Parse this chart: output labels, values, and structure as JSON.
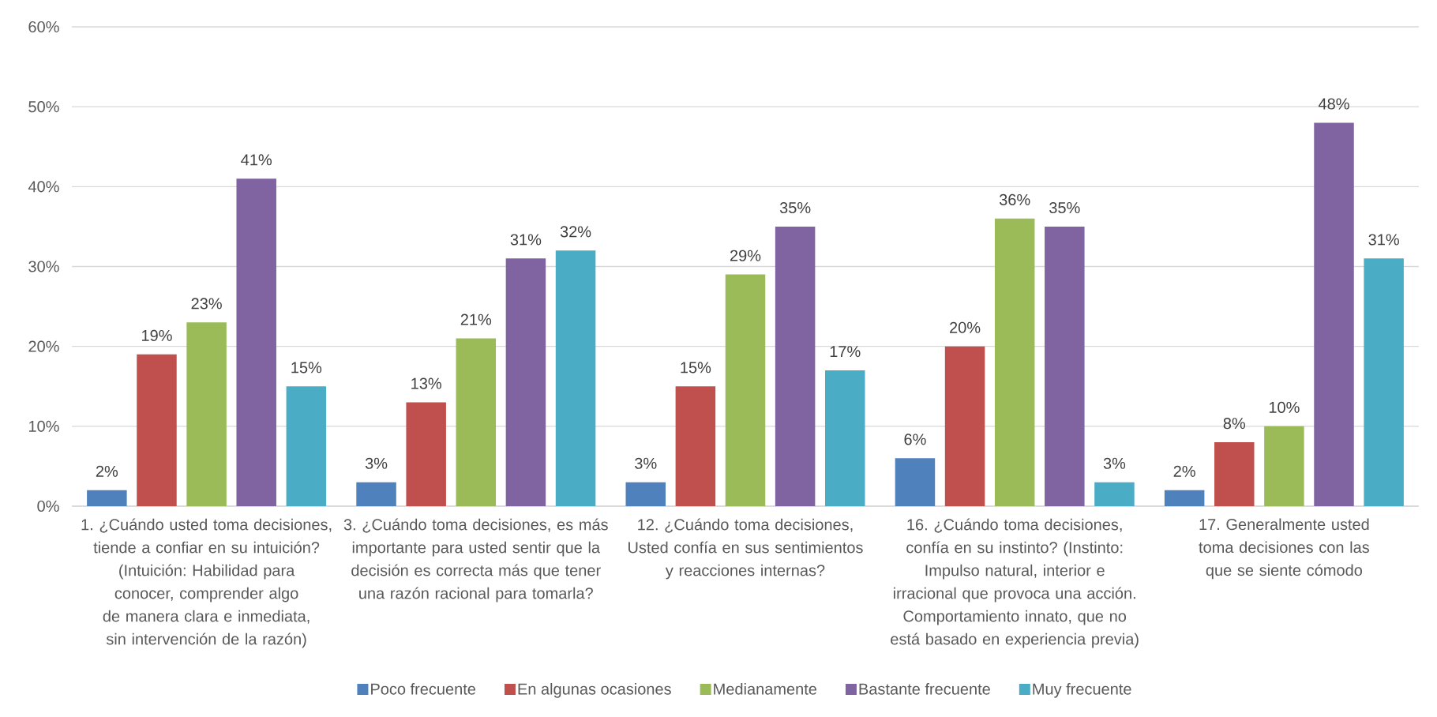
{
  "chart_data": {
    "type": "bar",
    "categories": [
      "1. ¿Cuándo usted toma decisiones, tiende a confiar en su intuición? (Intuición: Habilidad para conocer, comprender algo de manera clara e inmediata, sin intervención de la razón)",
      "3. ¿Cuándo toma decisiones, es más importante para usted sentir que la decisión es correcta más que tener una razón racional para tomarla?",
      "12. ¿Cuándo toma decisiones, Usted confía en sus sentimientos y reacciones internas?",
      "16. ¿Cuándo toma decisiones, confía en su instinto? (Instinto: Impulso natural, interior e irracional que provoca una acción. Comportamiento innato, que no está basado en experiencia previa)",
      "17. Generalmente usted toma decisiones con las que se siente cómodo"
    ],
    "series": [
      {
        "name": "Poco frecuente",
        "color": "#4f81bd",
        "values": [
          2,
          3,
          3,
          6,
          2
        ],
        "value_labels": [
          "2%",
          "3%",
          "3%",
          "6%",
          "2%"
        ]
      },
      {
        "name": "En algunas ocasiones",
        "color": "#c0504d",
        "values": [
          19,
          13,
          15,
          20,
          8
        ],
        "value_labels": [
          "19%",
          "13%",
          "15%",
          "20%",
          "8%"
        ]
      },
      {
        "name": "Medianamente",
        "color": "#9bbb59",
        "values": [
          23,
          21,
          29,
          36,
          10
        ],
        "value_labels": [
          "23%",
          "21%",
          "29%",
          "36%",
          "10%"
        ]
      },
      {
        "name": "Bastante frecuente",
        "color": "#8064a2",
        "values": [
          41,
          31,
          35,
          35,
          48
        ],
        "value_labels": [
          "41%",
          "31%",
          "35%",
          "35%",
          "48%"
        ]
      },
      {
        "name": "Muy frecuente",
        "color": "#4bacc6",
        "values": [
          15,
          32,
          17,
          3,
          31
        ],
        "value_labels": [
          "15%",
          "32%",
          "17%",
          "3%",
          "31%"
        ]
      }
    ],
    "ylim": [
      0,
      60
    ],
    "yticks": [
      {
        "value": 0,
        "label": "0%"
      },
      {
        "value": 10,
        "label": "10%"
      },
      {
        "value": 20,
        "label": "20%"
      },
      {
        "value": 30,
        "label": "30%"
      },
      {
        "value": 40,
        "label": "40%"
      },
      {
        "value": 50,
        "label": "50%"
      },
      {
        "value": 60,
        "label": "60%"
      }
    ],
    "grid": "y",
    "legend": "bottom"
  }
}
